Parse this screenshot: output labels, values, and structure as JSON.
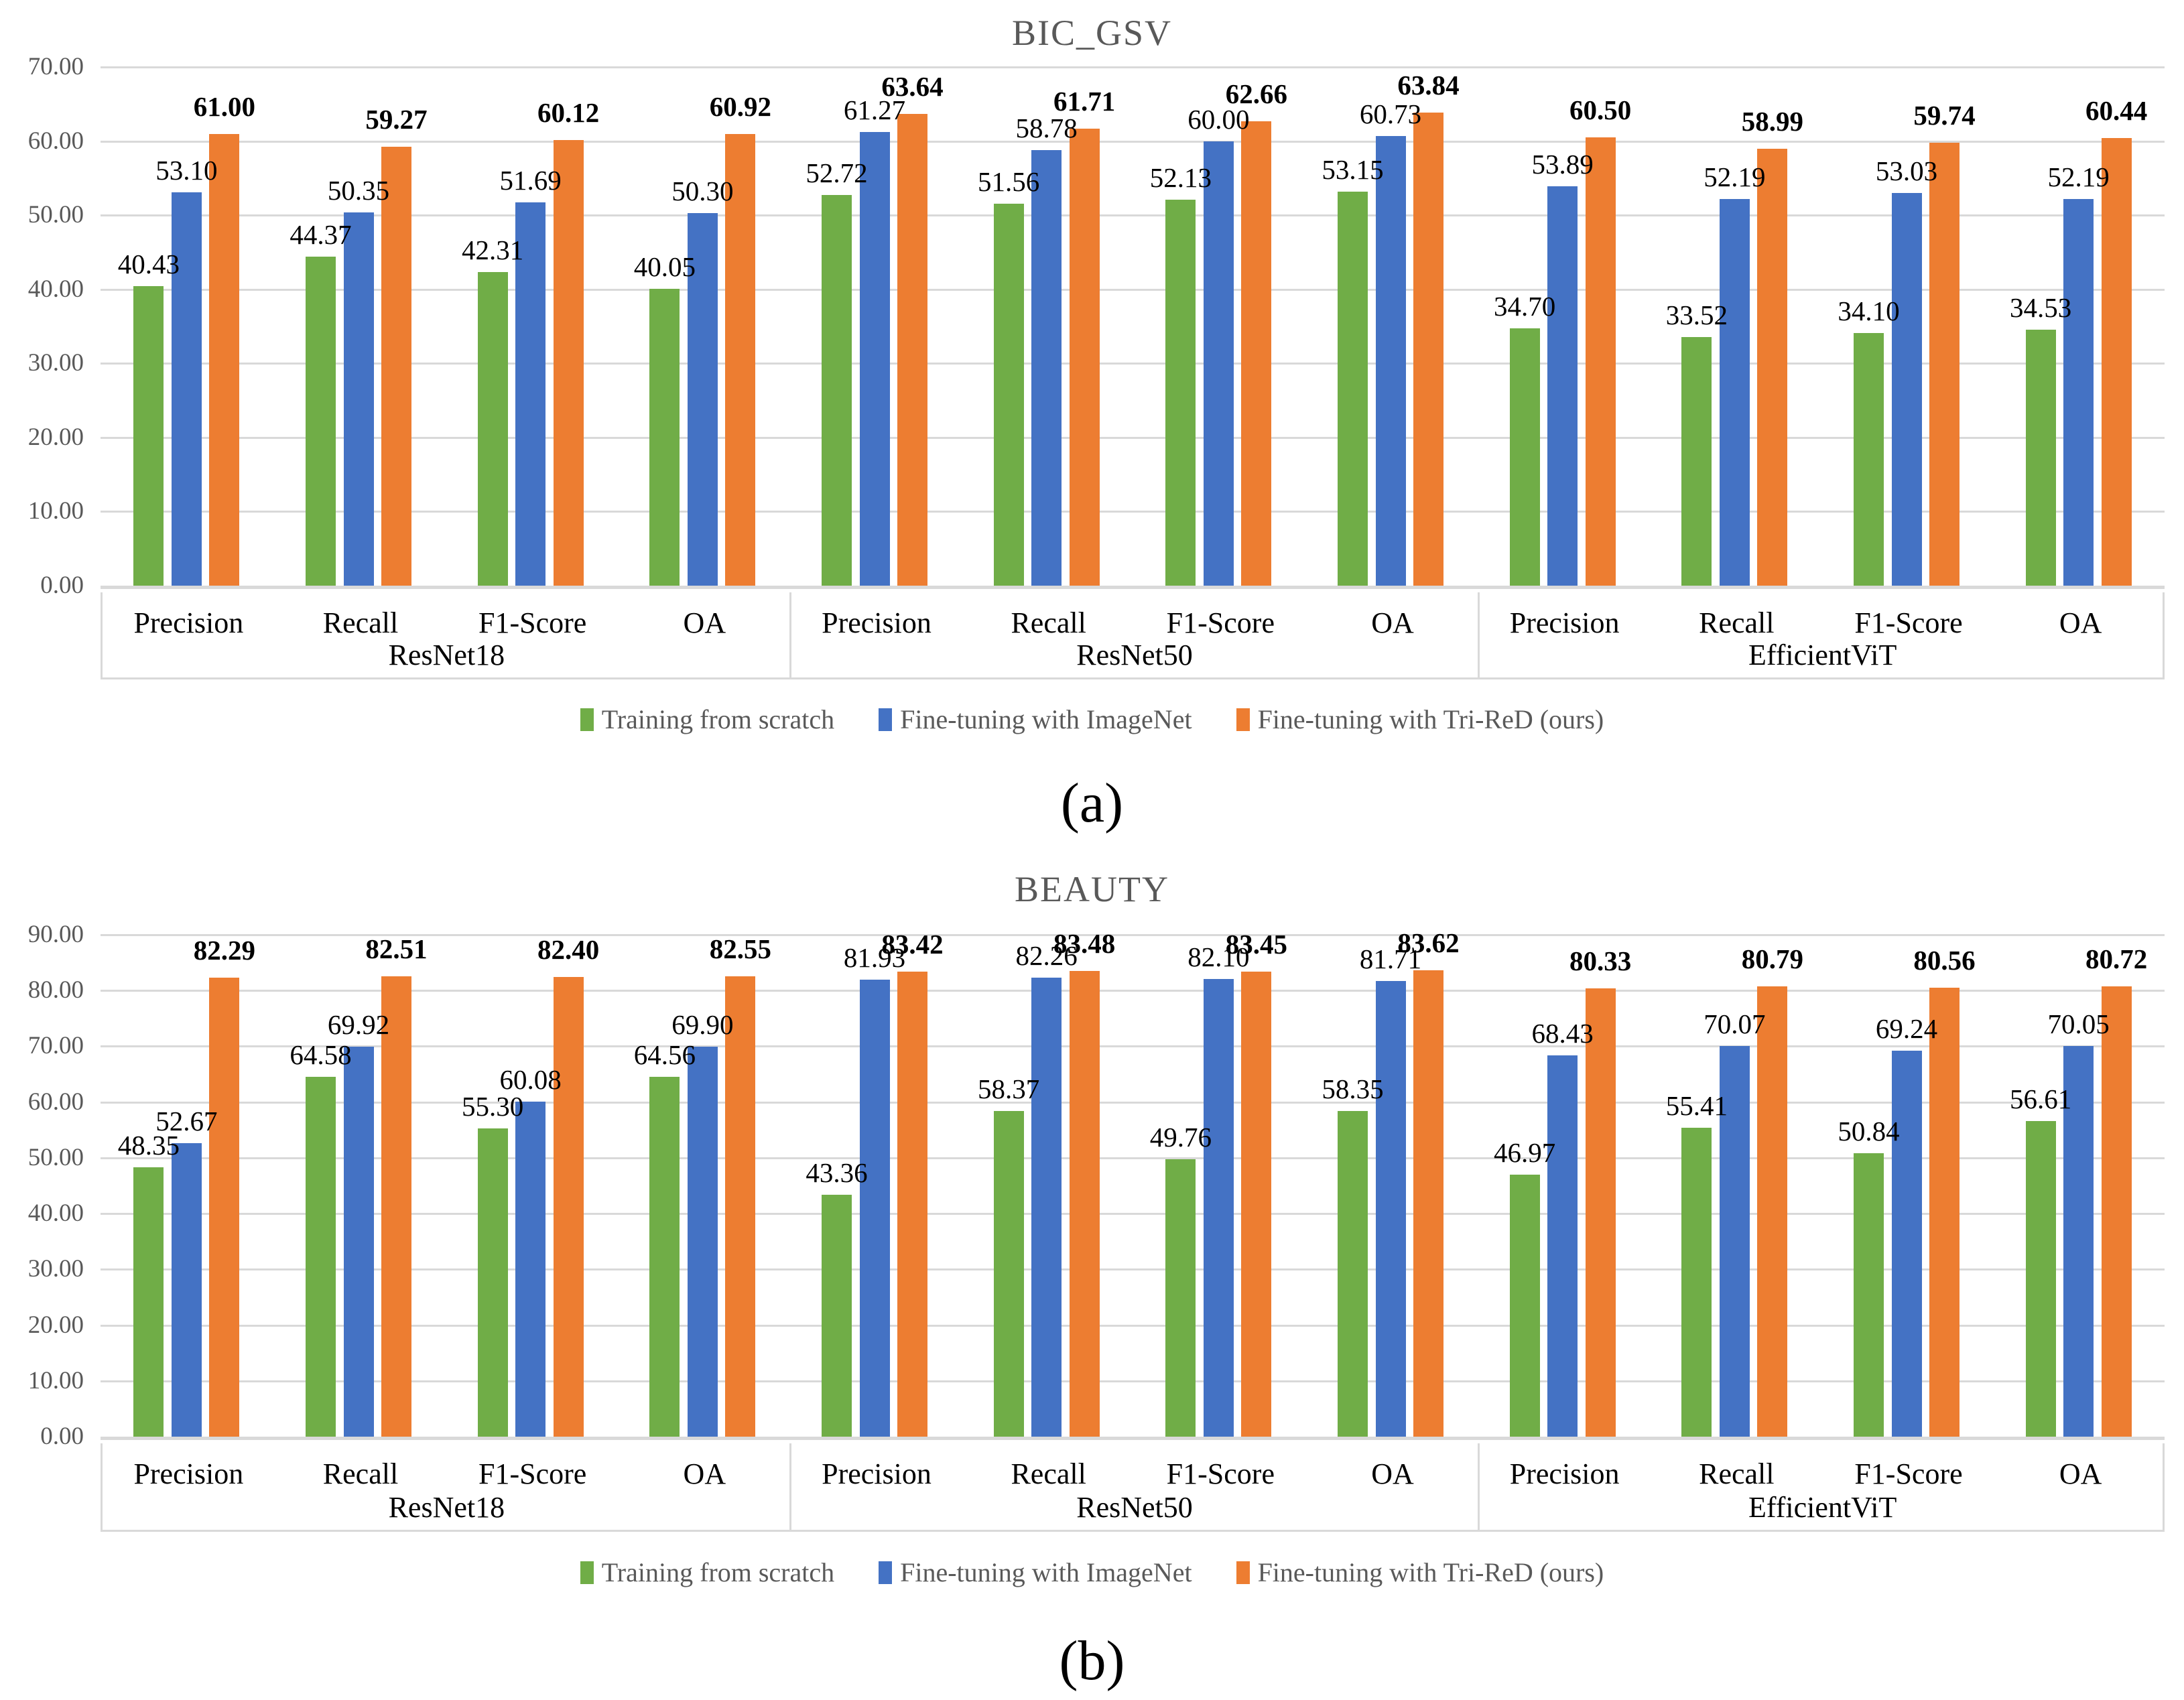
{
  "palette": {
    "series_green": "#70AD47",
    "series_blue": "#4472C4",
    "series_orange": "#ED7D31",
    "gridline": "#D9D9D9",
    "title_gray": "#595959",
    "label_black": "#000000"
  },
  "chart_data": [
    {
      "type": "bar",
      "title": "BIC_GSV",
      "caption": "(a)",
      "grid": true,
      "legend_position": "bottom",
      "ylim": [
        0,
        70
      ],
      "ytick_step": 10,
      "yticks": [
        "0.00",
        "10.00",
        "20.00",
        "30.00",
        "40.00",
        "50.00",
        "60.00",
        "70.00"
      ],
      "group_labels": [
        "ResNet18",
        "ResNet50",
        "EfficientViT"
      ],
      "categories": [
        "Precision",
        "Recall",
        "F1-Score",
        "OA"
      ],
      "value_label_format": "0.00",
      "series": [
        {
          "name": "Training from scratch",
          "color": "#70AD47",
          "emphasis": false,
          "values": [
            40.43,
            44.37,
            42.31,
            40.05,
            52.72,
            51.56,
            52.13,
            53.15,
            34.7,
            33.52,
            34.1,
            34.53
          ]
        },
        {
          "name": "Fine-tuning with ImageNet",
          "color": "#4472C4",
          "emphasis": false,
          "values": [
            53.1,
            50.35,
            51.69,
            50.3,
            61.27,
            58.78,
            60.0,
            60.73,
            53.89,
            52.19,
            53.03,
            52.19
          ]
        },
        {
          "name": "Fine-tuning with Tri-ReD (ours)",
          "color": "#ED7D31",
          "emphasis": true,
          "values": [
            61.0,
            59.27,
            60.12,
            60.92,
            63.64,
            61.71,
            62.66,
            63.84,
            60.5,
            58.99,
            59.74,
            60.44
          ]
        }
      ]
    },
    {
      "type": "bar",
      "title": "BEAUTY",
      "caption": "(b)",
      "grid": true,
      "legend_position": "bottom",
      "ylim": [
        0,
        90
      ],
      "ytick_step": 10,
      "yticks": [
        "0.00",
        "10.00",
        "20.00",
        "30.00",
        "40.00",
        "50.00",
        "60.00",
        "70.00",
        "80.00",
        "90.00"
      ],
      "group_labels": [
        "ResNet18",
        "ResNet50",
        "EfficientViT"
      ],
      "categories": [
        "Precision",
        "Recall",
        "F1-Score",
        "OA"
      ],
      "value_label_format": "0.00",
      "series": [
        {
          "name": "Training from scratch",
          "color": "#70AD47",
          "emphasis": false,
          "values": [
            48.35,
            64.58,
            55.3,
            64.56,
            43.36,
            58.37,
            49.76,
            58.35,
            46.97,
            55.41,
            50.84,
            56.61
          ]
        },
        {
          "name": "Fine-tuning with ImageNet",
          "color": "#4472C4",
          "emphasis": false,
          "values": [
            52.67,
            69.92,
            60.08,
            69.9,
            81.93,
            82.26,
            82.1,
            81.71,
            68.43,
            70.07,
            69.24,
            70.05
          ]
        },
        {
          "name": "Fine-tuning with Tri-ReD (ours)",
          "color": "#ED7D31",
          "emphasis": true,
          "values": [
            82.29,
            82.51,
            82.4,
            82.55,
            83.42,
            83.48,
            83.45,
            83.62,
            80.33,
            80.79,
            80.56,
            80.72
          ]
        }
      ]
    }
  ]
}
